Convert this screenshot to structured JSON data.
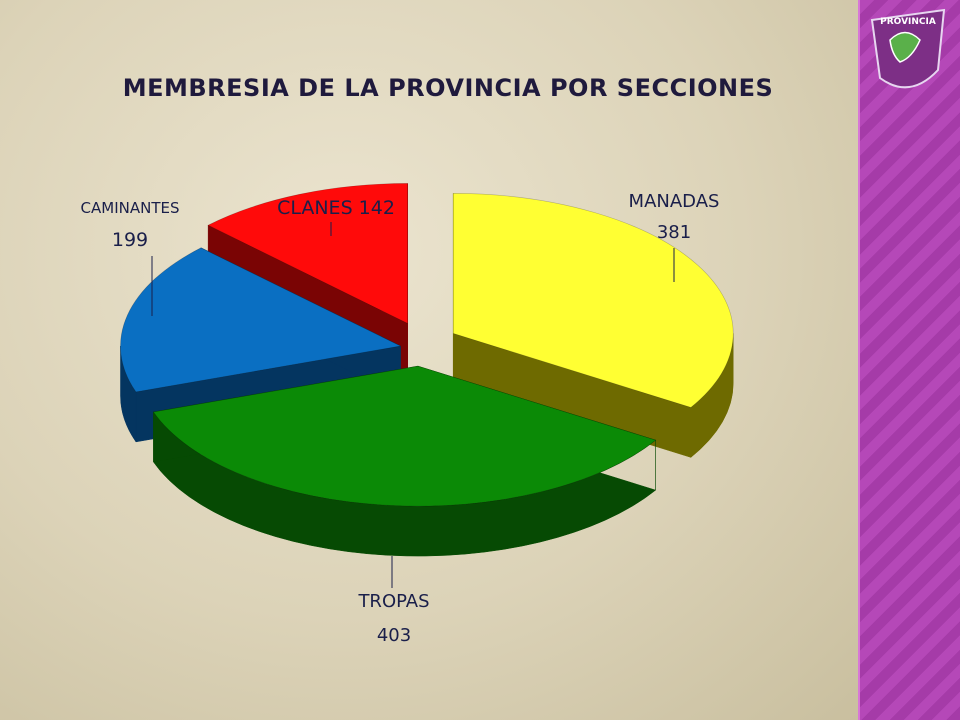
{
  "title": "MEMBRESIA DE LA PROVINCIA POR SECCIONES",
  "chart_data": {
    "type": "pie",
    "title": "MEMBRESIA DE LA PROVINCIA POR SECCIONES",
    "slices": [
      {
        "label": "MANADAS",
        "value": 381,
        "color": "#ffff33",
        "side_color": "#6e6a00"
      },
      {
        "label": "TROPAS",
        "value": 403,
        "color": "#0b8a06",
        "side_color": "#064a03"
      },
      {
        "label": "CAMINANTES",
        "value": 199,
        "color": "#0a6fc2",
        "side_color": "#043560"
      },
      {
        "label": "CLANES",
        "value": 142,
        "color": "#ff0a0a",
        "side_color": "#7a0404"
      }
    ],
    "data_labels": [
      {
        "line1": "MANADAS",
        "line2": "381"
      },
      {
        "line1": "TROPAS",
        "line2": "403"
      },
      {
        "line1": "CAMINANTES",
        "line2": "199"
      },
      {
        "line1": "CLANES 142",
        "line2": ""
      }
    ],
    "exploded": true,
    "three_d": true,
    "legend": "none"
  },
  "sidebar": {
    "logo_text": "PROVINCIA"
  }
}
